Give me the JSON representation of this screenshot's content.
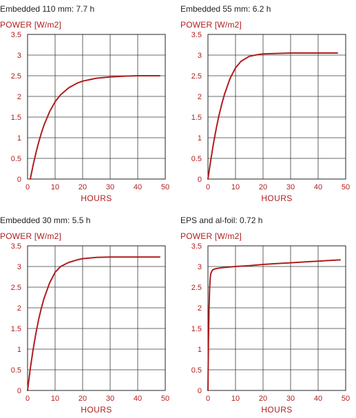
{
  "chart_data": [
    {
      "type": "line",
      "title": "Embedded 110 mm: 7.7 h",
      "ylabel": "POWER [W/m2]",
      "xlabel": "HOURS",
      "xlim": [
        0,
        50
      ],
      "ylim": [
        0,
        3.5
      ],
      "xticks": [
        "0",
        "10",
        "20",
        "30",
        "40",
        "50"
      ],
      "yticks": [
        "0",
        "0.5",
        "1",
        "1.5",
        "2",
        "2.5",
        "3",
        "3.5"
      ],
      "grid": true,
      "line_color": "#b01c1c",
      "series": [
        {
          "x": [
            1,
            2,
            3,
            4,
            5,
            6,
            8,
            10,
            12,
            15,
            18,
            20,
            25,
            30,
            35,
            40,
            45,
            48
          ],
          "y": [
            0.0,
            0.33,
            0.62,
            0.88,
            1.11,
            1.31,
            1.63,
            1.87,
            2.04,
            2.21,
            2.32,
            2.37,
            2.44,
            2.47,
            2.49,
            2.5,
            2.5,
            2.5
          ]
        }
      ]
    },
    {
      "type": "line",
      "title": "Embedded 55 mm: 6.2 h",
      "ylabel": "POWER [W/m2]",
      "xlabel": "HOURS",
      "xlim": [
        0,
        50
      ],
      "ylim": [
        0,
        3.5
      ],
      "xticks": [
        "0",
        "10",
        "20",
        "30",
        "40",
        "50"
      ],
      "yticks": [
        "0",
        "0.5",
        "1",
        "1.5",
        "2",
        "2.5",
        "3",
        "3.5"
      ],
      "grid": true,
      "line_color": "#b01c1c",
      "series": [
        {
          "x": [
            0,
            1,
            2,
            3,
            4,
            5,
            6,
            8,
            10,
            12,
            15,
            18,
            20,
            25,
            30,
            35,
            40,
            45,
            47
          ],
          "y": [
            0.0,
            0.45,
            0.86,
            1.22,
            1.54,
            1.81,
            2.05,
            2.43,
            2.69,
            2.85,
            2.97,
            3.01,
            3.03,
            3.04,
            3.05,
            3.05,
            3.05,
            3.05,
            3.05
          ]
        }
      ]
    },
    {
      "type": "line",
      "title": "Embedded 30 mm: 5.5 h",
      "ylabel": "POWER [W/m2]",
      "xlabel": "HOURS",
      "xlim": [
        0,
        50
      ],
      "ylim": [
        0,
        3.5
      ],
      "xticks": [
        "0",
        "10",
        "20",
        "30",
        "40",
        "50"
      ],
      "yticks": [
        "0",
        "0.5",
        "1",
        "1.5",
        "2",
        "2.5",
        "3",
        "3.5"
      ],
      "grid": true,
      "line_color": "#b01c1c",
      "series": [
        {
          "x": [
            0,
            1,
            2,
            3,
            4,
            5,
            6,
            8,
            10,
            12,
            15,
            18,
            20,
            25,
            30,
            35,
            40,
            45,
            48
          ],
          "y": [
            0.0,
            0.53,
            0.98,
            1.37,
            1.71,
            1.99,
            2.23,
            2.6,
            2.86,
            3.0,
            3.1,
            3.16,
            3.19,
            3.22,
            3.23,
            3.23,
            3.23,
            3.23,
            3.23
          ]
        }
      ]
    },
    {
      "type": "line",
      "title": "EPS and al-foil: 0.72 h",
      "ylabel": "POWER [W/m2]",
      "xlabel": "HOURS",
      "xlim": [
        0,
        50
      ],
      "ylim": [
        0,
        3.5
      ],
      "xticks": [
        "0",
        "10",
        "20",
        "30",
        "40",
        "50"
      ],
      "yticks": [
        "0",
        "0.5",
        "1",
        "1.5",
        "2",
        "2.5",
        "3",
        "3.5"
      ],
      "grid": true,
      "line_color": "#b01c1c",
      "series": [
        {
          "x": [
            0,
            0.2,
            0.4,
            0.6,
            0.8,
            1.0,
            1.5,
            2,
            3,
            5,
            10,
            15,
            20,
            25,
            30,
            35,
            40,
            45,
            48
          ],
          "y": [
            0.0,
            1.2,
            2.0,
            2.45,
            2.7,
            2.82,
            2.9,
            2.93,
            2.95,
            2.97,
            3.0,
            3.02,
            3.05,
            3.07,
            3.09,
            3.11,
            3.13,
            3.15,
            3.16
          ]
        }
      ]
    }
  ]
}
